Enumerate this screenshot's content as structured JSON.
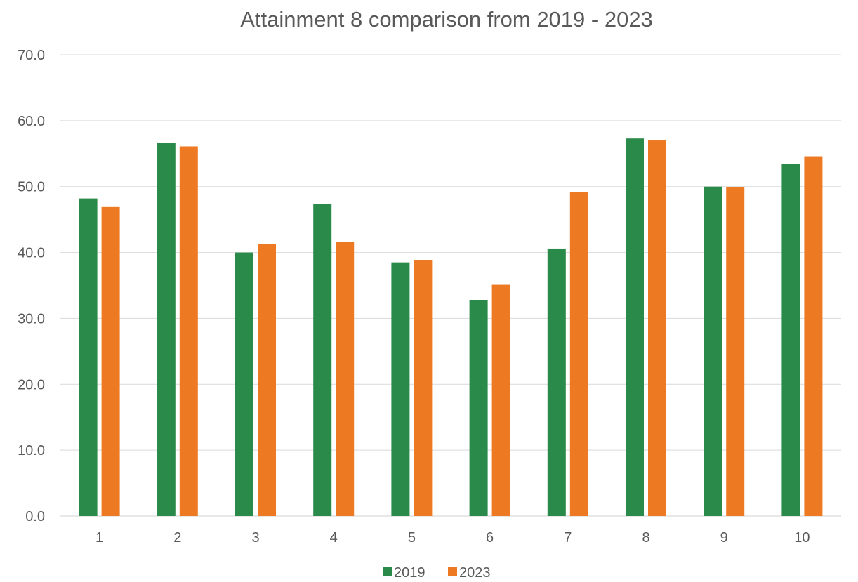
{
  "chart_data": {
    "type": "bar",
    "title": "Attainment 8 comparison from 2019 - 2023",
    "xlabel": "",
    "ylabel": "",
    "categories": [
      "1",
      "2",
      "3",
      "4",
      "5",
      "6",
      "7",
      "8",
      "9",
      "10"
    ],
    "series": [
      {
        "name": "2019",
        "color": "#2a8a4a",
        "values": [
          48.2,
          56.6,
          40.0,
          47.4,
          38.5,
          32.8,
          40.6,
          57.3,
          50.0,
          53.4
        ]
      },
      {
        "name": "2023",
        "color": "#ed7a22",
        "values": [
          46.9,
          56.1,
          41.3,
          41.6,
          38.8,
          35.1,
          49.2,
          57.0,
          49.9,
          54.6
        ]
      }
    ],
    "ylim": [
      0,
      70
    ],
    "yticks": [
      "0.0",
      "10.0",
      "20.0",
      "30.0",
      "40.0",
      "50.0",
      "60.0",
      "70.0"
    ],
    "grid": true,
    "legend_position": "bottom"
  }
}
